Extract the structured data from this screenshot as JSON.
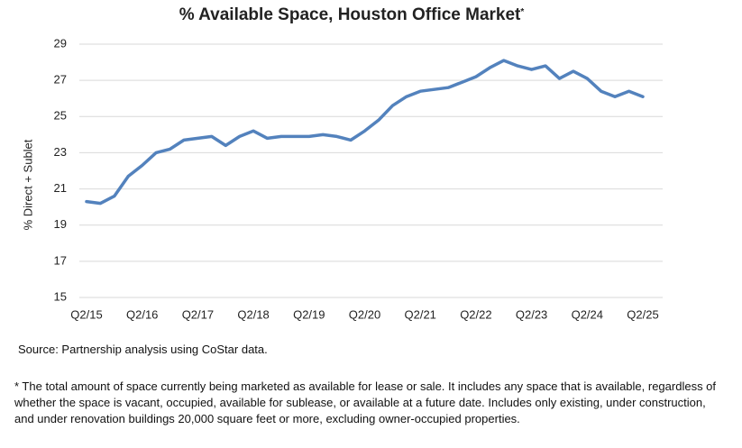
{
  "chart_data": {
    "type": "line",
    "title": "% Available Space, Houston Office Market",
    "title_note": "*",
    "y_label": "% Direct + Sublet",
    "categories": [
      "Q2/15",
      null,
      null,
      null,
      "Q2/16",
      null,
      null,
      null,
      "Q2/17",
      null,
      null,
      null,
      "Q2/18",
      null,
      null,
      null,
      "Q2/19",
      null,
      null,
      null,
      "Q2/20",
      null,
      null,
      null,
      "Q2/21",
      null,
      null,
      null,
      "Q2/22",
      null,
      null,
      null,
      "Q2/23",
      null,
      null,
      null,
      "Q2/24",
      null,
      null,
      null,
      "Q2/25"
    ],
    "values": [
      20.3,
      20.2,
      20.6,
      21.7,
      22.3,
      23.0,
      23.2,
      23.7,
      23.8,
      23.9,
      23.4,
      23.9,
      24.2,
      23.8,
      23.9,
      23.9,
      23.9,
      24.0,
      23.9,
      23.7,
      24.2,
      24.8,
      25.6,
      26.1,
      26.4,
      26.5,
      26.6,
      26.9,
      27.2,
      27.7,
      28.1,
      27.8,
      27.6,
      27.8,
      27.1,
      27.5,
      27.1,
      26.4,
      26.1,
      26.4,
      26.1
    ],
    "color": "#5382bd",
    "ylim": [
      15,
      29
    ],
    "yticks": [
      15,
      17,
      19,
      21,
      23,
      25,
      27,
      29
    ],
    "grid": true,
    "source": "Source: Partnership analysis using CoStar data.",
    "footnote": "* The total amount of space currently being marketed as available for lease or sale. It includes any space that is available, regardless of whether the space is vacant, occupied, available for sublease, or available at a future date. Includes only existing, under construction, and under renovation buildings 20,000 square feet or more, excluding owner-occupied properties."
  }
}
